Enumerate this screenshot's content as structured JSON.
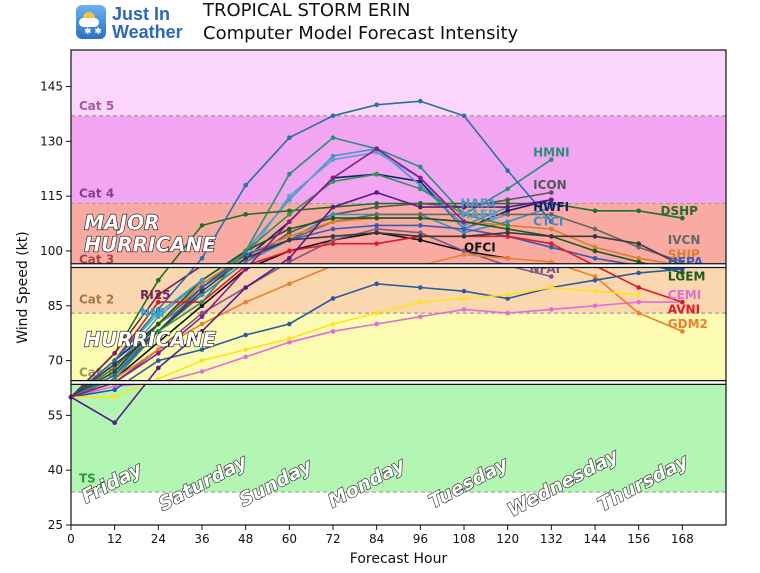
{
  "header": {
    "logo_line1": "Just In",
    "logo_line2": "Weather",
    "title": "TROPICAL STORM ERIN",
    "subtitle": "Computer Model Forecast Intensity"
  },
  "chart_data": {
    "type": "line",
    "title": "TROPICAL STORM ERIN",
    "subtitle": "Computer Model Forecast Intensity",
    "xlabel": "Forecast Hour",
    "ylabel": "Wind Speed (kt)",
    "xlim": [
      0,
      180
    ],
    "ylim": [
      25,
      155
    ],
    "xticks": [
      0,
      12,
      24,
      36,
      48,
      60,
      72,
      84,
      96,
      108,
      120,
      132,
      144,
      156,
      168
    ],
    "yticks": [
      25,
      40,
      55,
      70,
      85,
      100,
      115,
      130,
      145
    ],
    "grid": false,
    "legend": "none",
    "bands": [
      {
        "name": "TS",
        "from": 34,
        "to": 64,
        "color": "#b3f5b3",
        "label_color": "#2b9a3b",
        "label_y": 38
      },
      {
        "name": "Cat 1",
        "from": 64,
        "to": 83,
        "color": "#fbfbb2",
        "label_color": "#9a9a4a",
        "label_y": 67
      },
      {
        "name": "Cat 2",
        "from": 83,
        "to": 96,
        "color": "#fbd7b0",
        "label_color": "#a5784a",
        "label_y": 87
      },
      {
        "name": "Cat 3",
        "from": 96,
        "to": 113,
        "color": "#f9aaa3",
        "label_color": "#a5454a",
        "label_y": 98
      },
      {
        "name": "Cat 4",
        "from": 113,
        "to": 137,
        "color": "#f2a6f2",
        "label_color": "#8c3c8c",
        "label_y": 116
      },
      {
        "name": "Cat 5",
        "from": 137,
        "to": 155,
        "color": "#fbd5fb",
        "label_color": "#a55aa5",
        "label_y": 140
      }
    ],
    "threshold_lines": [
      64,
      96
    ],
    "day_labels": [
      {
        "text": "Friday",
        "hour": 12,
        "y": 35
      },
      {
        "text": "Saturday",
        "hour": 37,
        "y": 35
      },
      {
        "text": "Sunday",
        "hour": 57,
        "y": 35
      },
      {
        "text": "Monday",
        "hour": 82,
        "y": 35
      },
      {
        "text": "Tuesday",
        "hour": 110,
        "y": 35
      },
      {
        "text": "Wednesday",
        "hour": 136,
        "y": 35
      },
      {
        "text": "Thursday",
        "hour": 158,
        "y": 35
      }
    ],
    "region_labels": [
      {
        "text": "MAJOR",
        "hour": 2,
        "y": 108
      },
      {
        "text": "HURRICANE",
        "hour": 2,
        "y": 102
      },
      {
        "text": "HURRICANE",
        "hour": 2,
        "y": 76
      }
    ],
    "series": [
      {
        "name": "HMNI",
        "color": "#2a8f78",
        "x": [
          0,
          12,
          24,
          36,
          48,
          60,
          72,
          84,
          96,
          108,
          120,
          132
        ],
        "values": [
          60,
          68,
          80,
          90,
          100,
          121,
          131,
          128,
          123,
          110,
          117,
          125
        ],
        "label": {
          "hour": 127,
          "y": 127
        }
      },
      {
        "name": "ICON",
        "color": "#555555",
        "x": [
          0,
          12,
          24,
          36,
          48,
          60,
          72,
          84,
          96,
          108,
          120,
          132
        ],
        "values": [
          60,
          67,
          78,
          88,
          97,
          105,
          110,
          112,
          113,
          112,
          114,
          116
        ],
        "label": {
          "hour": 127,
          "y": 118
        }
      },
      {
        "name": "HWFI",
        "color": "#1c1c6e",
        "x": [
          0,
          12,
          24,
          36,
          48,
          60,
          72,
          84,
          96,
          108,
          120,
          132
        ],
        "values": [
          60,
          70,
          80,
          90,
          98,
          108,
          120,
          121,
          119,
          106,
          111,
          114
        ],
        "label": {
          "hour": 127,
          "y": 112
        }
      },
      {
        "name": "CTCI",
        "color": "#3a8fc6",
        "x": [
          0,
          12,
          24,
          36,
          48,
          60,
          72,
          84,
          96,
          108,
          120,
          132
        ],
        "values": [
          60,
          66,
          80,
          88,
          97,
          103,
          110,
          110,
          110,
          105,
          108,
          112
        ],
        "label": {
          "hour": 127,
          "y": 108
        }
      },
      {
        "name": "HAFA",
        "color": "#4b94c6",
        "x": [
          0,
          12,
          24,
          36,
          48,
          60,
          72,
          84,
          96,
          108,
          120
        ],
        "values": [
          60,
          68,
          82,
          92,
          100,
          114,
          126,
          128,
          118,
          107,
          112
        ],
        "label": {
          "hour": 107,
          "y": 113
        }
      },
      {
        "name": "HAFB",
        "color": "#5a9fd0",
        "x": [
          0,
          12,
          24,
          36,
          48,
          60,
          72,
          84,
          96,
          108,
          120
        ],
        "values": [
          60,
          66,
          78,
          90,
          98,
          115,
          125,
          127,
          120,
          106,
          110
        ],
        "label": {
          "hour": 107,
          "y": 110
        }
      },
      {
        "name": "OFCI",
        "color": "#111111",
        "x": [
          0,
          12,
          24,
          36,
          48,
          60,
          72,
          84,
          96,
          108,
          120
        ],
        "values": [
          60,
          65,
          75,
          85,
          95,
          100,
          103,
          105,
          103,
          100,
          98
        ],
        "label": {
          "hour": 108,
          "y": 101
        }
      },
      {
        "name": "NFAI",
        "color": "#7a5a8a",
        "x": [
          0,
          12,
          24,
          36,
          48,
          60,
          72,
          84,
          96,
          108,
          120,
          132
        ],
        "values": [
          60,
          64,
          73,
          83,
          90,
          97,
          103,
          106,
          105,
          100,
          96,
          93
        ],
        "label": {
          "hour": 126,
          "y": 95
        }
      },
      {
        "name": "DSHP",
        "color": "#1f6f2a",
        "x": [
          0,
          12,
          24,
          36,
          48,
          60,
          72,
          84,
          96,
          108,
          120,
          132,
          144,
          156,
          168
        ],
        "values": [
          60,
          72,
          92,
          107,
          110,
          111,
          112,
          113,
          113,
          113,
          113,
          113,
          111,
          111,
          109
        ],
        "label": {
          "hour": 162,
          "y": 111
        }
      },
      {
        "name": "IVCN",
        "color": "#666666",
        "x": [
          0,
          12,
          24,
          36,
          48,
          60,
          72,
          84,
          96,
          108,
          120,
          132,
          144,
          156,
          168
        ],
        "values": [
          60,
          68,
          80,
          90,
          98,
          103,
          108,
          110,
          110,
          110,
          110,
          110,
          106,
          101,
          97
        ],
        "label": {
          "hour": 164,
          "y": 103
        }
      },
      {
        "name": "SHIP",
        "color": "#d97f2b",
        "x": [
          0,
          12,
          24,
          36,
          48,
          60,
          72,
          84,
          96,
          108,
          120,
          132,
          144,
          156,
          168
        ],
        "values": [
          60,
          67,
          80,
          91,
          99,
          104,
          108,
          109,
          109,
          108,
          107,
          106,
          101,
          98,
          96
        ],
        "label": {
          "hour": 164,
          "y": 99
        }
      },
      {
        "name": "LGEM",
        "color": "#1a5a1a",
        "x": [
          0,
          12,
          24,
          36,
          48,
          60,
          72,
          84,
          96,
          108,
          120,
          132,
          144,
          156,
          168
        ],
        "values": [
          60,
          67,
          80,
          92,
          100,
          106,
          109,
          109,
          109,
          108,
          106,
          104,
          100,
          97,
          94
        ],
        "label": {
          "hour": 164,
          "y": 93
        }
      },
      {
        "name": "HFPA",
        "color": "#3a5ab5",
        "x": [
          0,
          12,
          24,
          36,
          48,
          60,
          72,
          84,
          96,
          108,
          120,
          132,
          144,
          156,
          168
        ],
        "values": [
          60,
          66,
          78,
          90,
          99,
          103,
          106,
          107,
          107,
          106,
          104,
          101,
          98,
          96,
          95
        ],
        "label": {
          "hour": 164,
          "y": 97
        }
      },
      {
        "name": "CEMI",
        "color": "#e66bd9",
        "x": [
          0,
          12,
          24,
          36,
          48,
          60,
          72,
          84,
          96,
          108,
          120,
          132,
          144,
          156,
          168
        ],
        "values": [
          60,
          63,
          64,
          67,
          71,
          75,
          78,
          80,
          82,
          84,
          83,
          84,
          85,
          86,
          86
        ],
        "label": {
          "hour": 164,
          "y": 88
        }
      },
      {
        "name": "AVNI",
        "color": "#e0182a",
        "x": [
          0,
          12,
          24,
          36,
          48,
          60,
          72,
          84,
          96,
          108,
          120,
          132,
          144,
          156,
          168
        ],
        "values": [
          60,
          70,
          86,
          86,
          96,
          100,
          102,
          102,
          104,
          104,
          104,
          102,
          96,
          90,
          86
        ],
        "label": {
          "hour": 164,
          "y": 84
        }
      },
      {
        "name": "GDM2",
        "color": "#ee7f2b",
        "x": [
          0,
          12,
          24,
          36,
          48,
          60,
          72,
          84,
          96,
          108,
          120,
          132,
          144,
          156,
          168
        ],
        "values": [
          60,
          65,
          73,
          80,
          86,
          91,
          96,
          96,
          96,
          99,
          98,
          97,
          93,
          83,
          78
        ],
        "label": {
          "hour": 164,
          "y": 80
        }
      },
      {
        "name": "RI25",
        "color": "#7a1f5a",
        "x": [
          0,
          12,
          24,
          36
        ],
        "values": [
          60,
          72,
          88,
          96
        ],
        "label": {
          "hour": 19,
          "y": 88
        }
      },
      {
        "name": "NNI",
        "color": "#3aa0c8",
        "x": [
          0,
          12,
          24,
          36
        ],
        "values": [
          60,
          70,
          83,
          92
        ],
        "label": {
          "hour": 19,
          "y": 83
        }
      },
      {
        "name": "",
        "color": "#2a5b9c",
        "x": [
          0,
          12,
          24,
          36,
          48,
          60,
          72,
          84,
          96,
          108,
          120,
          132,
          144,
          156,
          168
        ],
        "values": [
          60,
          62,
          70,
          73,
          77,
          80,
          87,
          91,
          90,
          89,
          87,
          90,
          92,
          94,
          95
        ]
      },
      {
        "name": "",
        "color": "#ffe21f",
        "x": [
          0,
          12,
          24,
          36,
          48,
          60,
          72,
          84,
          96,
          108,
          120,
          132,
          144,
          156
        ],
        "values": [
          60,
          60,
          65,
          70,
          73,
          76,
          80,
          83,
          86,
          87,
          88,
          90,
          89,
          88
        ]
      },
      {
        "name": "",
        "color": "#2a6fa5",
        "x": [
          0,
          12,
          24,
          36,
          48,
          60,
          72,
          84,
          96,
          108,
          120,
          132
        ],
        "values": [
          60,
          70,
          84,
          98,
          118,
          131,
          137,
          140,
          141,
          137,
          122,
          108
        ]
      },
      {
        "name": "",
        "color": "#5a1a8a",
        "x": [
          0,
          12,
          24,
          36,
          48,
          60,
          72,
          84,
          96,
          108,
          120,
          132
        ],
        "values": [
          60,
          53,
          68,
          78,
          90,
          98,
          112,
          116,
          112,
          112,
          112,
          114
        ]
      },
      {
        "name": "",
        "color": "#3a3a3a",
        "x": [
          0,
          12,
          24,
          36,
          48,
          60,
          72,
          84,
          96,
          108,
          120,
          132,
          144,
          156,
          168
        ],
        "values": [
          60,
          69,
          78,
          89,
          98,
          103,
          104,
          105,
          104,
          104,
          105,
          104,
          104,
          102,
          96
        ]
      },
      {
        "name": "",
        "color": "#2f8f5a",
        "x": [
          0,
          12,
          24,
          36,
          48,
          60,
          72,
          84,
          96,
          108,
          120
        ],
        "values": [
          60,
          65,
          78,
          86,
          100,
          110,
          119,
          121,
          117,
          110,
          107
        ]
      },
      {
        "name": "",
        "color": "#8b1c8b",
        "x": [
          0,
          12,
          24,
          36,
          48,
          60,
          72,
          84,
          96,
          108
        ],
        "values": [
          60,
          64,
          72,
          82,
          95,
          108,
          120,
          128,
          120,
          108
        ]
      }
    ]
  }
}
